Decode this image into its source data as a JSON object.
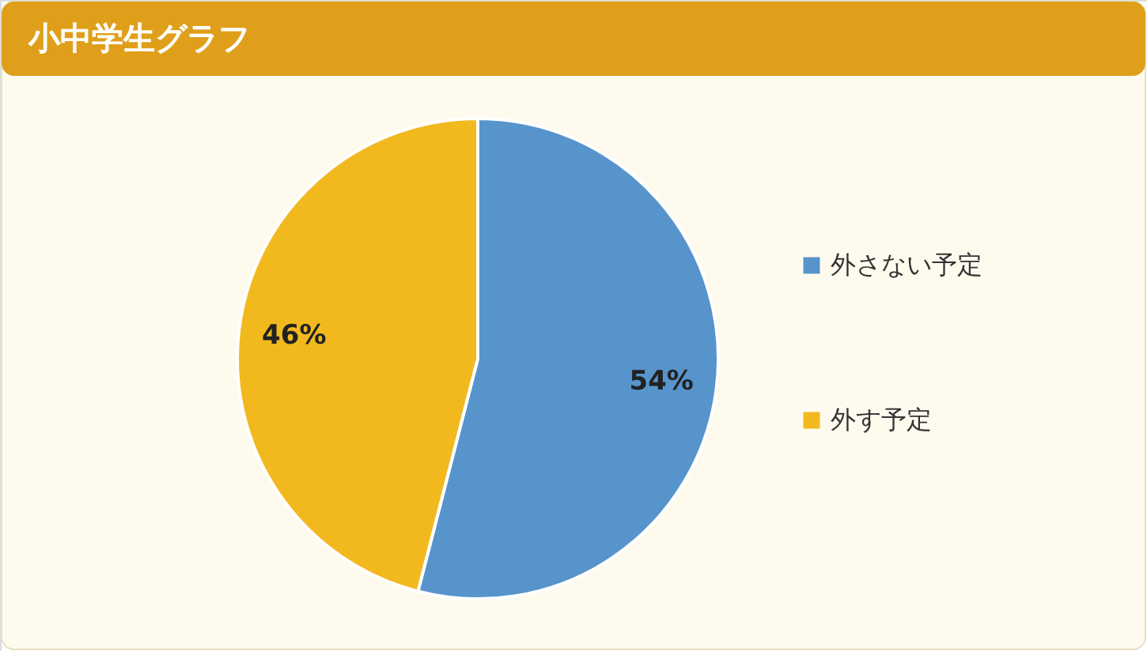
{
  "chart_data": {
    "type": "pie",
    "title": "小中学生グラフ",
    "categories": [
      "外さない予定",
      "外す予定"
    ],
    "values": [
      54,
      46
    ],
    "colors": [
      "#5794cb",
      "#f2b91f"
    ],
    "value_labels": [
      "54%",
      "46%"
    ],
    "legend": "right"
  }
}
